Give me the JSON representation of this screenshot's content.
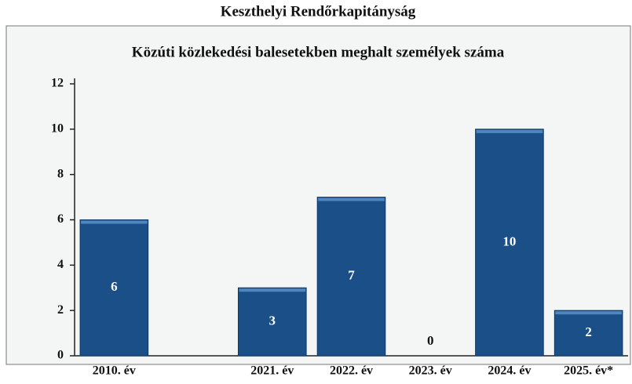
{
  "chart_data": {
    "type": "bar",
    "title": "Keszthelyi Rendőrkapitányság",
    "subtitle": "Közúti közlekedési balesetekben meghalt személyek száma",
    "categories": [
      "2010. év",
      null,
      "2021. év",
      "2022. év",
      "2023. év",
      "2024. év",
      "2025. év*"
    ],
    "values": [
      6,
      null,
      3,
      7,
      0,
      10,
      2
    ],
    "color": "#1b4f87",
    "ylim": [
      0,
      12
    ],
    "yticks": [
      0,
      2,
      4,
      6,
      8,
      10,
      12
    ],
    "grid": false
  }
}
